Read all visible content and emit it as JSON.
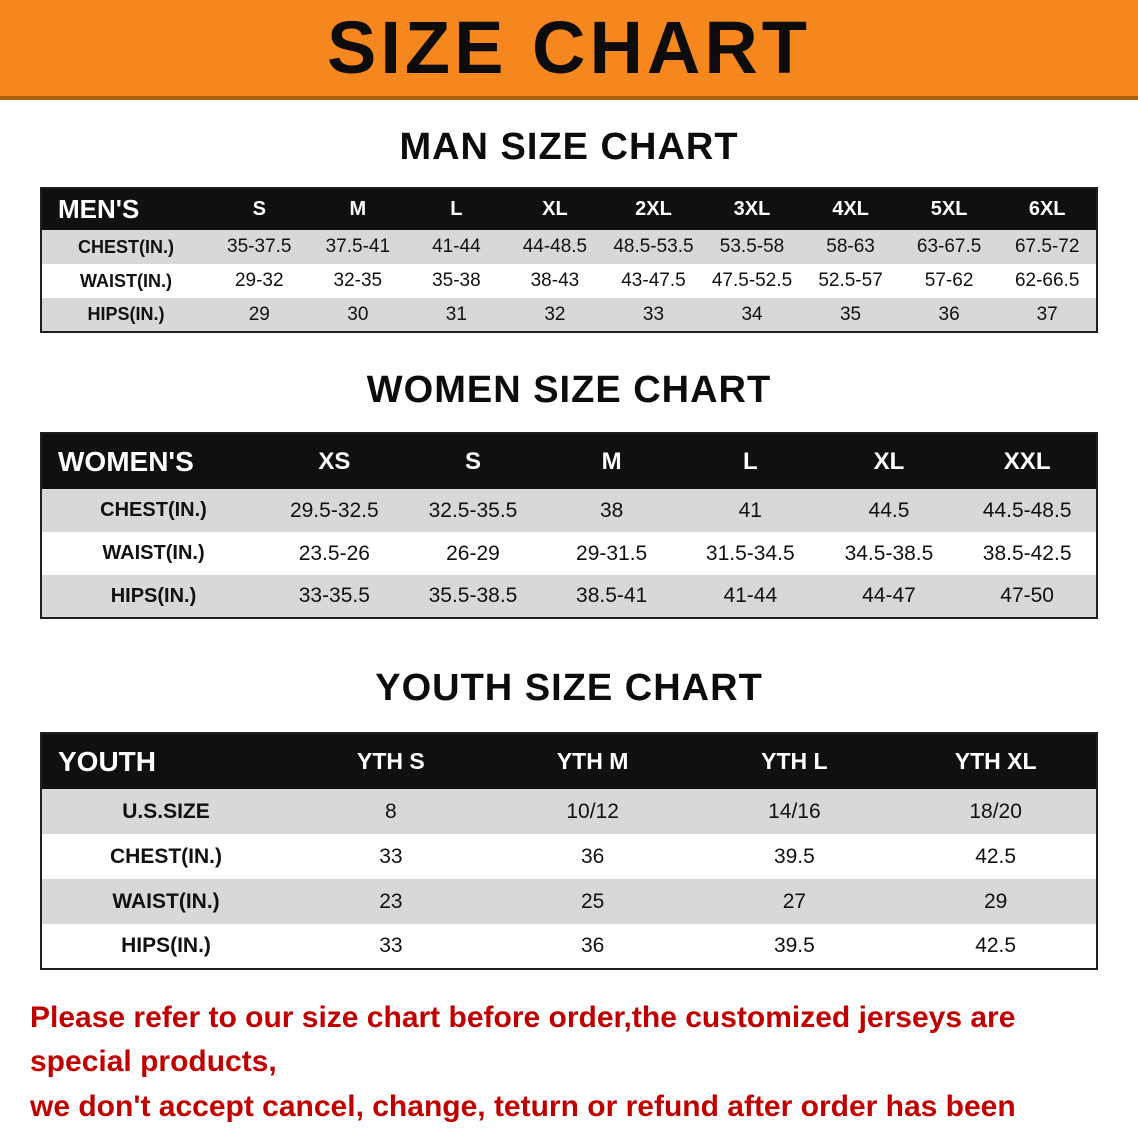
{
  "banner": {
    "title": "SIZE CHART",
    "bg_color": "#f6871f",
    "text_color": "#0c0c0c"
  },
  "sections": [
    {
      "id": "men",
      "heading": "MAN SIZE CHART",
      "header_label": "MEN'S",
      "columns": [
        "S",
        "M",
        "L",
        "XL",
        "2XL",
        "3XL",
        "4XL",
        "5XL",
        "6XL"
      ],
      "rows": [
        {
          "label": "CHEST(IN.)",
          "values": [
            "35-37.5",
            "37.5-41",
            "41-44",
            "44-48.5",
            "48.5-53.5",
            "53.5-58",
            "58-63",
            "63-67.5",
            "67.5-72"
          ]
        },
        {
          "label": "WAIST(IN.)",
          "values": [
            "29-32",
            "32-35",
            "35-38",
            "38-43",
            "43-47.5",
            "47.5-52.5",
            "52.5-57",
            "57-62",
            "62-66.5"
          ]
        },
        {
          "label": "HIPS(IN.)",
          "values": [
            "29",
            "30",
            "31",
            "32",
            "33",
            "34",
            "35",
            "36",
            "37"
          ]
        }
      ]
    },
    {
      "id": "women",
      "heading": "WOMEN SIZE CHART",
      "header_label": "WOMEN'S",
      "columns": [
        "XS",
        "S",
        "M",
        "L",
        "XL",
        "XXL"
      ],
      "rows": [
        {
          "label": "CHEST(IN.)",
          "values": [
            "29.5-32.5",
            "32.5-35.5",
            "38",
            "41",
            "44.5",
            "44.5-48.5"
          ]
        },
        {
          "label": "WAIST(IN.)",
          "values": [
            "23.5-26",
            "26-29",
            "29-31.5",
            "31.5-34.5",
            "34.5-38.5",
            "38.5-42.5"
          ]
        },
        {
          "label": "HIPS(IN.)",
          "values": [
            "33-35.5",
            "35.5-38.5",
            "38.5-41",
            "41-44",
            "44-47",
            "47-50"
          ]
        }
      ]
    },
    {
      "id": "youth",
      "heading": "YOUTH SIZE CHART",
      "header_label": "YOUTH",
      "columns": [
        "YTH S",
        "YTH M",
        "YTH L",
        "YTH XL"
      ],
      "rows": [
        {
          "label": "U.S.SIZE",
          "values": [
            "8",
            "10/12",
            "14/16",
            "18/20"
          ]
        },
        {
          "label": "CHEST(IN.)",
          "values": [
            "33",
            "36",
            "39.5",
            "42.5"
          ]
        },
        {
          "label": "WAIST(IN.)",
          "values": [
            "23",
            "25",
            "27",
            "29"
          ]
        },
        {
          "label": "HIPS(IN.)",
          "values": [
            "33",
            "36",
            "39.5",
            "42.5"
          ]
        }
      ]
    }
  ],
  "footer": {
    "line1": "Please refer to our size chart before order,the customized jerseys are special products,",
    "line2": "we don't accept cancel, change, teturn or refund after order has been placed!",
    "text_color": "#c00000"
  }
}
